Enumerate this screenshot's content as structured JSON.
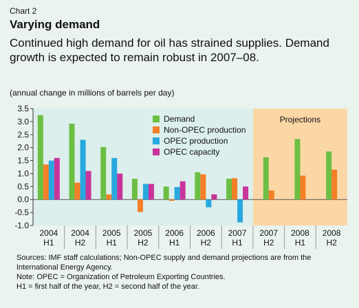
{
  "header": {
    "chart_number": "Chart 2",
    "title": "Varying demand",
    "subtitle": "Continued high demand for oil has strained supplies. Demand growth is expected to remain robust in 2007–08.",
    "units": "(annual change in millions of barrels per day)"
  },
  "chart_data": {
    "type": "bar",
    "categories": [
      [
        "2004",
        "H1"
      ],
      [
        "2004",
        "H2"
      ],
      [
        "2005",
        "H1"
      ],
      [
        "2005",
        "H2"
      ],
      [
        "2006",
        "H1"
      ],
      [
        "2006",
        "H2"
      ],
      [
        "2007",
        "H1"
      ],
      [
        "2007",
        "H2"
      ],
      [
        "2008",
        "H1"
      ],
      [
        "2008",
        "H2"
      ]
    ],
    "series": [
      {
        "name": "Demand",
        "color": "#6cbf43",
        "values": [
          3.25,
          2.92,
          2.02,
          0.8,
          0.5,
          1.05,
          0.8,
          1.63,
          2.33,
          1.85
        ]
      },
      {
        "name": "Non-OPEC production",
        "color": "#f47f27",
        "values": [
          1.35,
          0.65,
          0.2,
          -0.48,
          -0.05,
          0.97,
          0.82,
          0.35,
          0.92,
          1.15
        ]
      },
      {
        "name": "OPEC production",
        "color": "#28a8e0",
        "values": [
          1.5,
          2.3,
          1.6,
          0.6,
          0.48,
          -0.3,
          -0.88,
          null,
          null,
          null
        ]
      },
      {
        "name": "OPEC capacity",
        "color": "#c8349a",
        "values": [
          1.6,
          1.1,
          1.0,
          0.6,
          0.7,
          0.2,
          0.5,
          null,
          null,
          null
        ]
      }
    ],
    "ylim": [
      -1.0,
      3.5
    ],
    "yticks": [
      "3.5",
      "3.0",
      "2.5",
      "2.0",
      "1.5",
      "1.0",
      "0.5",
      "0.0",
      "-0.5",
      "-1.0"
    ],
    "ytick_values": [
      3.5,
      3.0,
      2.5,
      2.0,
      1.5,
      1.0,
      0.5,
      0.0,
      -0.5,
      -1.0
    ],
    "projection_start_index": 7,
    "projection_label": "Projections",
    "legend_placement": "top-center",
    "colors": {
      "plot_bg": "#dcefec",
      "projection_bg": "#fbd7a6",
      "panel_bg": "#eaf3ee"
    }
  },
  "notes": {
    "sources": "Sources: IMF staff calculations; Non-OPEC supply and demand projections are from the International Energy Agency.",
    "note": "Note: OPEC = Organization of Petroleum Exporting Countries.",
    "key": "H1 =  first half of the year, H2 = second half of the year."
  }
}
